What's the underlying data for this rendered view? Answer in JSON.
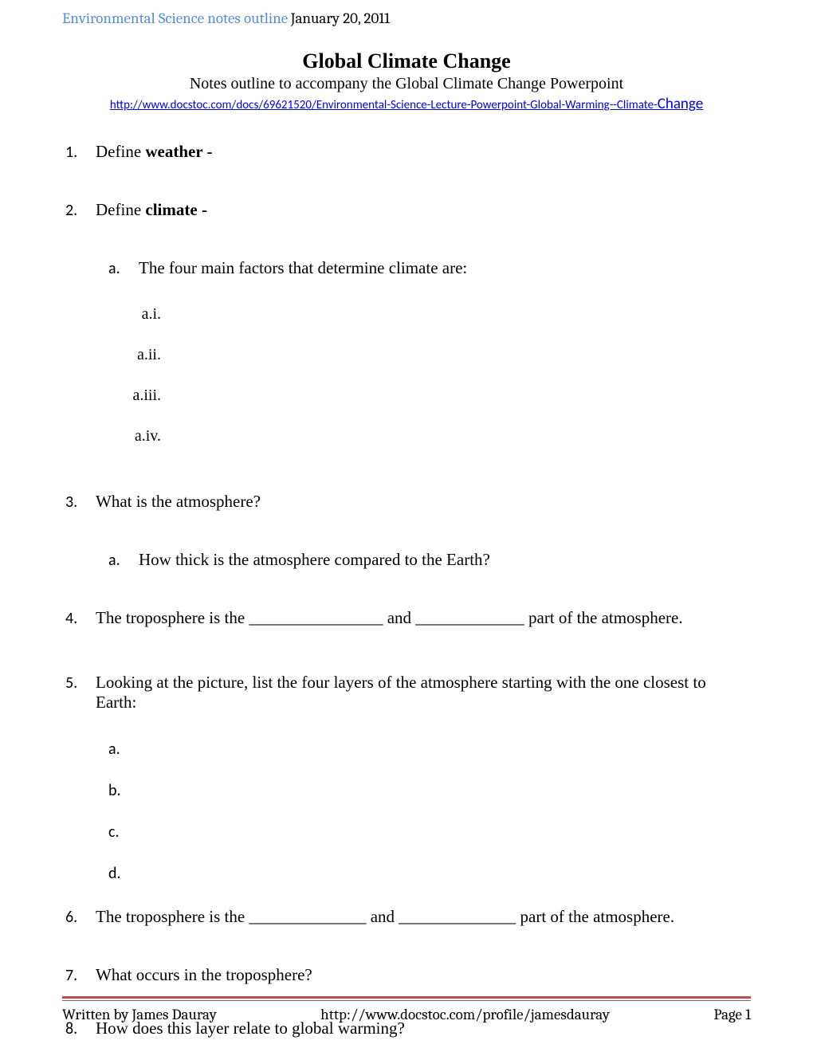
{
  "header": {
    "title": "Environmental Science notes outline",
    "date": "January 20, 2011"
  },
  "main_title": "Global Climate Change",
  "subtitle": "Notes outline to accompany the Global Climate Change Powerpoint",
  "link": {
    "main": "http://www.docstoc.com/docs/69621520/Environmental-Science-Lecture-Powerpoint-Global-Warming--Climate-",
    "suffix": "Change"
  },
  "items": [
    {
      "num": "1.",
      "pre": "Define ",
      "bold": "weather -",
      "mt": 0
    },
    {
      "num": "2.",
      "pre": "Define ",
      "bold": "climate -",
      "mt": 48
    },
    {
      "num": "a.",
      "text": "The four main factors that determine climate are:",
      "level": 2,
      "mt": 48
    },
    {
      "num": "a.i.",
      "text": "",
      "level": 3,
      "mt": 34
    },
    {
      "num": "a.ii.",
      "text": "",
      "level": 3,
      "mt": 28
    },
    {
      "num": "a.iii.",
      "text": "",
      "level": 3,
      "mt": 28
    },
    {
      "num": "a.iv.",
      "text": "",
      "level": 3,
      "mt": 28
    },
    {
      "num": "3.",
      "text": "What is the atmosphere?",
      "mt": 58
    },
    {
      "num": "a.",
      "text": "How thick is the atmosphere compared to the Earth?",
      "level": 2,
      "mt": 48
    },
    {
      "num": "4.",
      "text": "The troposphere is the ________________ and _____________  part of the atmosphere.",
      "mt": 48
    },
    {
      "num": "5.",
      "text": "Looking at the picture, list the four layers of the atmosphere starting with the one closest to Earth:",
      "mt": 56
    },
    {
      "num": "a.",
      "text": "",
      "level": 2,
      "mt": 34
    },
    {
      "num": "b.",
      "text": "",
      "level": 2,
      "mt": 28
    },
    {
      "num": "c.",
      "text": "",
      "level": 2,
      "mt": 28
    },
    {
      "num": "d.",
      "text": "",
      "level": 2,
      "mt": 28
    },
    {
      "num": "6.",
      "text": "The troposphere is the ______________ and ______________ part of the atmosphere.",
      "mt": 30
    },
    {
      "num": "7.",
      "text": "What occurs in the troposphere?",
      "mt": 48
    },
    {
      "num": "8.",
      "text": "How does this layer relate to global warming?",
      "mt": 42
    }
  ],
  "footer": {
    "author": "Written by James Dauray",
    "url": "http://www.docstoc.com/profile/jamesdauray",
    "page": "Page 1"
  },
  "colors": {
    "header_accent": "#558ed5",
    "link": "#0000ee",
    "footer_line": "#b8504f",
    "text": "#000000",
    "background": "#ffffff"
  }
}
